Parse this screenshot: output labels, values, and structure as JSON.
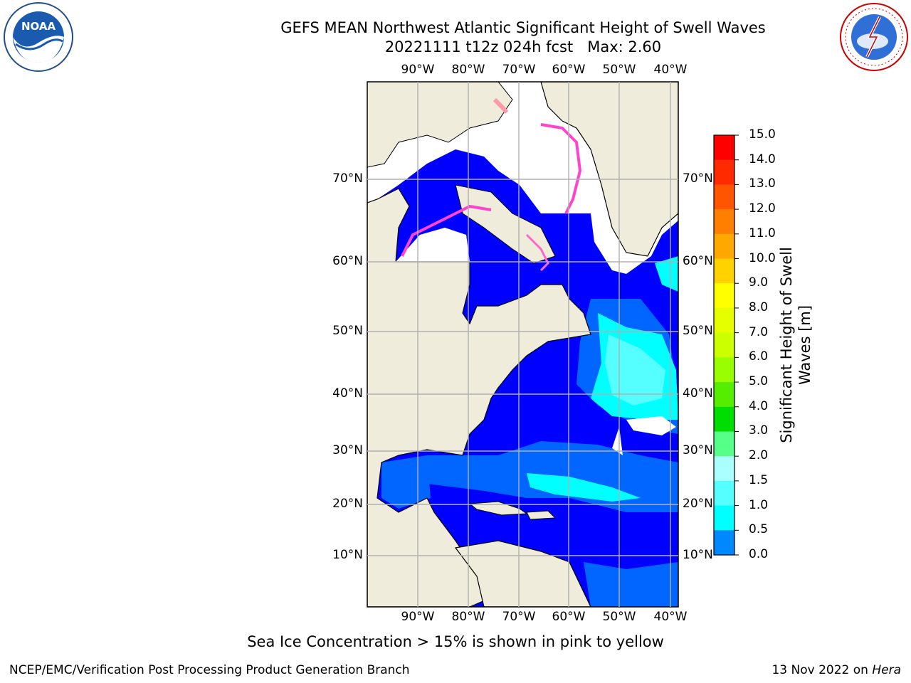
{
  "title_line1": "GEFS MEAN Northwest Atlantic Significant Height of Swell Waves",
  "title_line2": "20221111 t12z 024h fcst   Max: 2.60",
  "logos": {
    "left": "NOAA",
    "left_ring": "NATIONAL OCEANIC AND ATMOSPHERIC ADMINISTRATION · U.S. DEPARTMENT OF COMMERCE",
    "right": "NATIONAL WEATHER SERVICE"
  },
  "lon_labels": [
    "90°W",
    "80°W",
    "70°W",
    "60°W",
    "50°W",
    "40°W"
  ],
  "lat_labels": [
    "70°N",
    "60°N",
    "50°N",
    "40°N",
    "30°N",
    "20°N",
    "10°N"
  ],
  "colorbar": {
    "label_line1": "Significant Height of Swell",
    "label_line2": "Waves [m]",
    "ticks": [
      "15.0",
      "14.0",
      "13.0",
      "12.0",
      "11.0",
      "10.0",
      "9.0",
      "8.0",
      "7.0",
      "6.0",
      "5.0",
      "4.0",
      "3.0",
      "2.0",
      "1.5",
      "1.0",
      "0.5",
      "0.0"
    ],
    "colors": [
      "#ff0000",
      "#ff2a00",
      "#ff5500",
      "#ff7f00",
      "#ffa800",
      "#ffd200",
      "#ffff00",
      "#e6ff00",
      "#ccff00",
      "#99ff00",
      "#55ee00",
      "#00dd00",
      "#55ff88",
      "#aaffff",
      "#55ffff",
      "#00ffff",
      "#0088ff",
      "#0000ff"
    ]
  },
  "caption": "Sea Ice Concentration > 15% is shown in pink to yellow",
  "footer_left": "NCEP/EMC/Verification Post Processing Product Generation Branch",
  "footer_right_text": "13 Nov 2022 on ",
  "footer_right_host": "Hera"
}
